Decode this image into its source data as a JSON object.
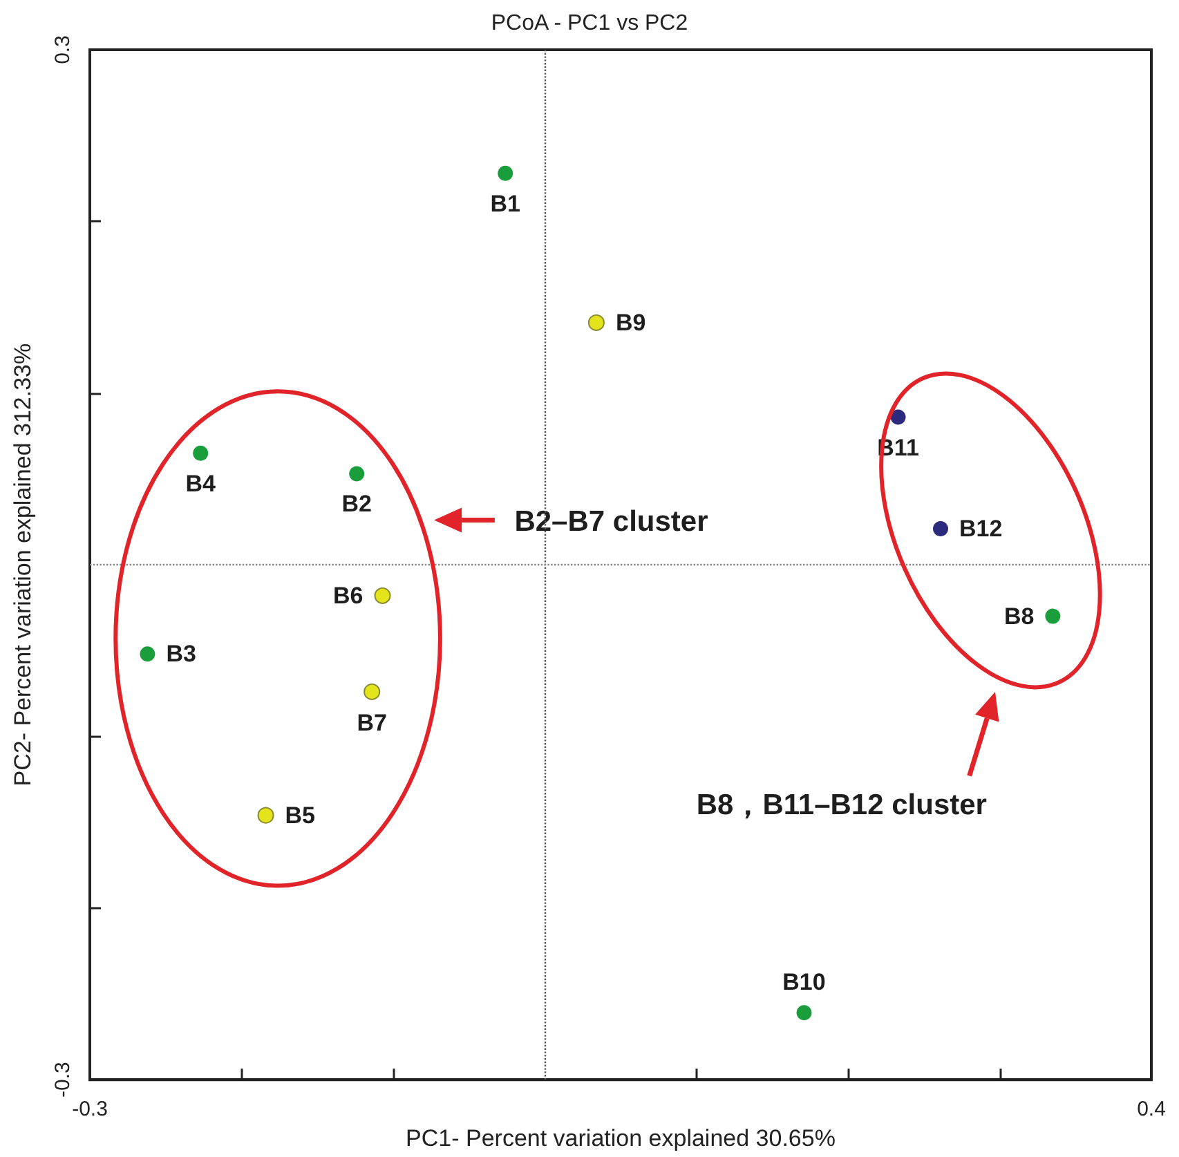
{
  "chart_data": {
    "type": "scatter",
    "title": "PCoA - PC1 vs PC2",
    "xlabel": "PC1- Percent variation explained 30.65%",
    "ylabel": "PC2- Percent variation explained 312.33%",
    "xlim": [
      -0.3,
      0.4
    ],
    "ylim": [
      -0.3,
      0.3
    ],
    "xticks": [
      -0.3,
      {
        "value": -0.2,
        "label": null
      },
      {
        "value": -0.1,
        "label": null
      },
      {
        "value": 0.1,
        "label": null
      },
      {
        "value": 0.2,
        "label": null
      },
      {
        "value": 0.3,
        "label": null
      },
      0.4
    ],
    "yticks": [
      -0.3,
      {
        "value": -0.2,
        "label": null
      },
      {
        "value": -0.1,
        "label": null
      },
      {
        "value": 0.1,
        "label": null
      },
      {
        "value": 0.2,
        "label": null
      },
      0.3
    ],
    "grid": false,
    "legend": false,
    "marker": "circle",
    "ref_lines": [
      {
        "axis": "x",
        "value": 0,
        "line_style": "dotted",
        "color": "#555555"
      },
      {
        "axis": "y",
        "value": 0,
        "line_style": "dotted",
        "color": "#888888"
      }
    ],
    "annotations": [
      "B2–B7 cluster",
      "B8，B11–B12 cluster"
    ],
    "series": [
      {
        "name": "B1",
        "color": "#1a9e3c",
        "x": [
          -0.026
        ],
        "values": [
          0.228
        ]
      },
      {
        "name": "B2",
        "color": "#1a9e3c",
        "x": [
          -0.124
        ],
        "values": [
          0.053
        ]
      },
      {
        "name": "B3",
        "color": "#1a9e3c",
        "x": [
          -0.262
        ],
        "values": [
          -0.052
        ]
      },
      {
        "name": "B4",
        "color": "#1a9e3c",
        "x": [
          -0.227
        ],
        "values": [
          0.065
        ]
      },
      {
        "name": "B5",
        "color": "#e4e41c",
        "x": [
          -0.184
        ],
        "values": [
          -0.146
        ]
      },
      {
        "name": "B6",
        "color": "#e4e41c",
        "x": [
          -0.107
        ],
        "values": [
          -0.018
        ]
      },
      {
        "name": "B7",
        "color": "#e4e41c",
        "x": [
          -0.114
        ],
        "values": [
          -0.074
        ]
      },
      {
        "name": "B8",
        "color": "#1a9e3c",
        "x": [
          0.335
        ],
        "values": [
          -0.03
        ]
      },
      {
        "name": "B9",
        "color": "#e4e41c",
        "x": [
          0.034
        ],
        "values": [
          0.141
        ]
      },
      {
        "name": "B10",
        "color": "#1a9e3c",
        "x": [
          0.171
        ],
        "values": [
          -0.261
        ]
      },
      {
        "name": "B11",
        "color": "#2b2a7c",
        "x": [
          0.233
        ],
        "values": [
          0.086
        ]
      },
      {
        "name": "B12",
        "color": "#2b2a7c",
        "x": [
          0.261
        ],
        "values": [
          0.021
        ]
      }
    ]
  }
}
